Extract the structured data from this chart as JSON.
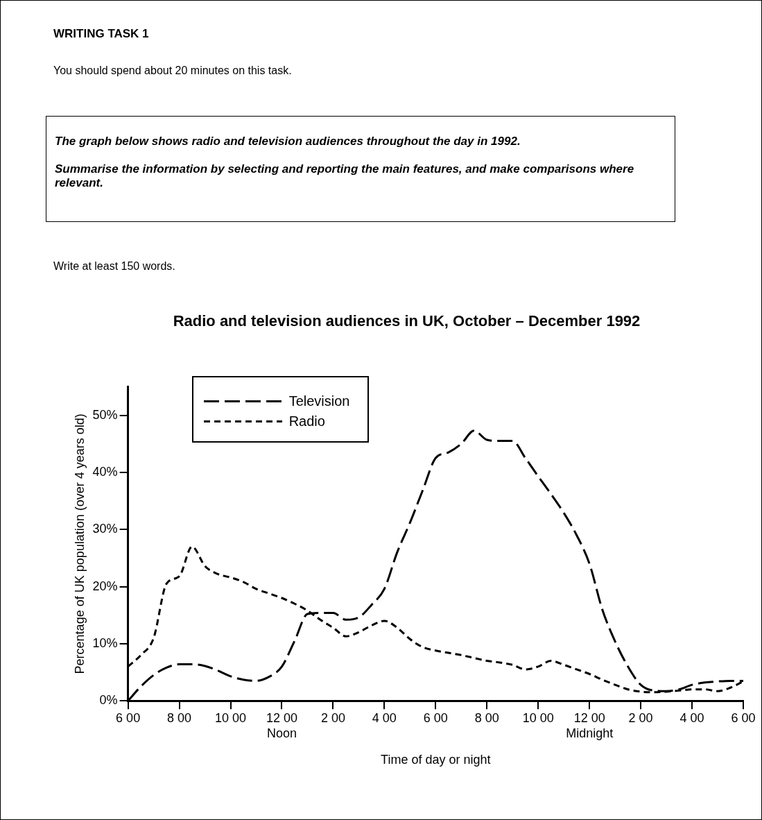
{
  "chart_data": {
    "type": "line",
    "title": "Radio and television audiences in UK, October – December 1992",
    "xlabel": "Time of day or night",
    "ylabel": "Percentage of UK population (over 4 years old)",
    "annotations": [
      "WRITING TASK 1",
      "You should spend about 20 minutes on this task.",
      "The graph below shows radio and television audiences throughout the day in 1992.",
      "Summarise the information by selecting and reporting the main features, and make comparisons where relevant.",
      "Write at least 150 words."
    ],
    "categories": [
      "6 00",
      null,
      null,
      null,
      "8 00",
      null,
      null,
      null,
      "10 00",
      null,
      null,
      null,
      "12 00\nNoon",
      null,
      null,
      null,
      "2 00",
      null,
      null,
      null,
      "4 00",
      null,
      null,
      null,
      "6 00",
      null,
      null,
      null,
      "8 00",
      null,
      null,
      null,
      "10 00",
      null,
      null,
      null,
      "12 00\nMidnight",
      null,
      null,
      null,
      "2 00",
      null,
      null,
      null,
      "4 00",
      null,
      null,
      null,
      "6 00"
    ],
    "ylim": [
      0,
      55
    ],
    "yticks": [
      {
        "value": 0,
        "label": "0%"
      },
      {
        "value": 10,
        "label": "10%"
      },
      {
        "value": 20,
        "label": "20%"
      },
      {
        "value": 30,
        "label": "30%"
      },
      {
        "value": 40,
        "label": "40%"
      },
      {
        "value": 50,
        "label": "50%"
      }
    ],
    "grid": false,
    "legend": "top left",
    "marker": "none",
    "line_style": "dashed",
    "series": [
      {
        "name": "Television",
        "color": "#000000",
        "values": [
          0,
          2.5,
          4.5,
          5.8,
          6.4,
          6.4,
          6.1,
          5.3,
          4.3,
          3.7,
          3.5,
          4.2,
          6,
          10.5,
          15.2,
          15.4,
          15.4,
          14.2,
          14.6,
          16.8,
          19.6,
          26,
          31.2,
          36.9,
          42.5,
          43.5,
          45,
          47.3,
          45.7,
          45.5,
          45.5,
          42.5,
          39.3,
          36.2,
          32.9,
          29,
          24,
          16,
          10.4,
          6,
          2.8,
          1.8,
          1.7,
          2,
          2.8,
          3.2,
          3.4,
          3.5,
          3.5
        ]
      },
      {
        "name": "Radio",
        "color": "#000000",
        "values": [
          6,
          8,
          11,
          20.5,
          21.8,
          27,
          23.6,
          22.2,
          21.6,
          20.8,
          19.6,
          18.8,
          18,
          17,
          15.8,
          14.2,
          12.8,
          11.3,
          12,
          13.2,
          14,
          12.8,
          10.8,
          9.4,
          8.8,
          8.4,
          8,
          7.5,
          7,
          6.7,
          6.3,
          5.5,
          6,
          7,
          6.3,
          5.5,
          4.7,
          3.7,
          2.8,
          2,
          1.6,
          1.5,
          1.6,
          1.8,
          2,
          2,
          1.7,
          2.3,
          3.4
        ]
      }
    ]
  }
}
